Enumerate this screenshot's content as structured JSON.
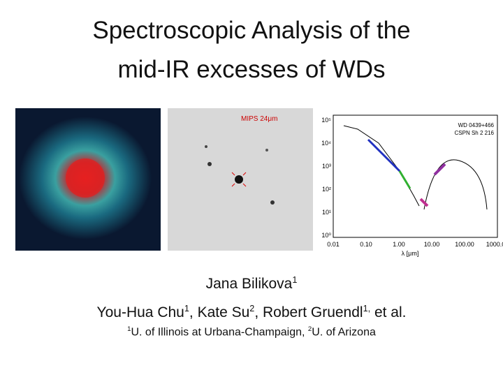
{
  "title": {
    "line1": "Spectroscopic Analysis of the",
    "line2": "mid-IR excesses of WDs"
  },
  "figures": {
    "mips": {
      "label": "MIPS 24μm"
    },
    "sed": {
      "legend": [
        "WD 0439+466",
        "CSPN Sh 2 216"
      ],
      "xticks": [
        "0.01",
        "0.10",
        "1.00",
        "10.00",
        "100.00",
        "1000.00"
      ],
      "yticks": [
        "10⁵",
        "10⁴",
        "10³",
        "10²",
        "10¹",
        "10⁰"
      ],
      "xlabel": "λ [μm]"
    }
  },
  "presenter": {
    "name": "Jana Bilikova",
    "sup": "1"
  },
  "authors": [
    {
      "name": "You-Hua Chu",
      "sup": "1"
    },
    {
      "name": "Kate Su",
      "sup": "2"
    },
    {
      "name": "Robert Gruendl",
      "sup": "1,"
    },
    {
      "name": "et al."
    }
  ],
  "affiliations": [
    {
      "sup": "1",
      "name": "U. of Illinois at Urbana-Champaign"
    },
    {
      "sup": "2",
      "name": "U. of Arizona"
    }
  ]
}
